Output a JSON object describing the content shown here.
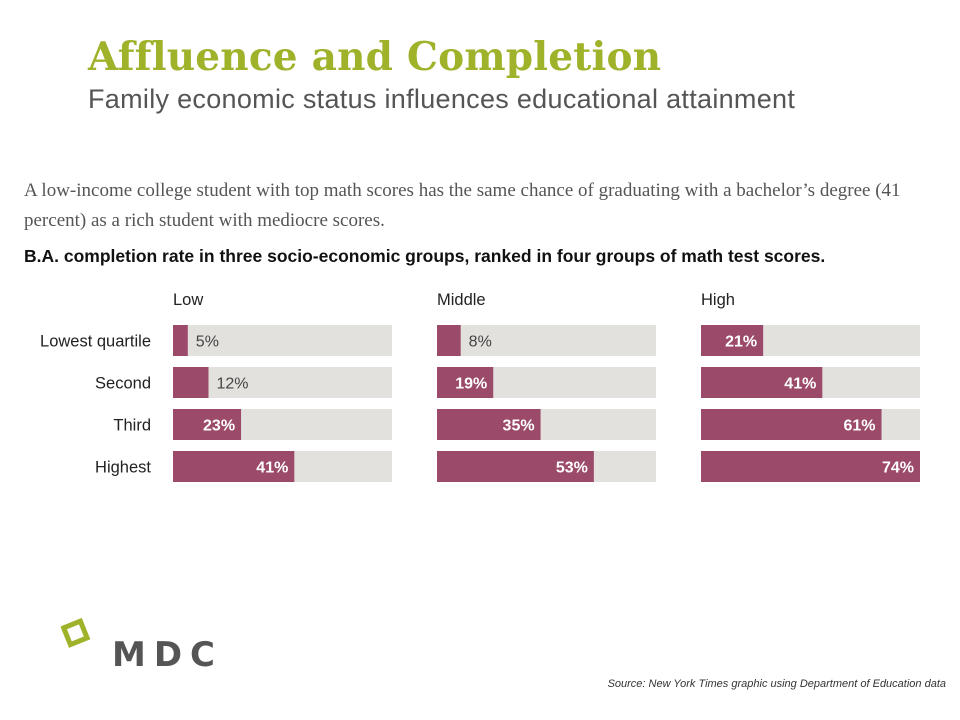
{
  "header": {
    "title": "Affluence and Completion",
    "subtitle": "Family economic status influences educational attainment"
  },
  "lede": "A low-income college student with top math scores has the same chance of graduating with a bachelor’s degree (41 percent) as a rich student with mediocre scores.",
  "chart_heading": "B.A. completion rate in three socio-economic groups, ranked in four groups of math test scores.",
  "chart_data": {
    "type": "bar",
    "orientation": "horizontal",
    "title": "B.A. completion rate in three socio-economic groups, ranked in four groups of math test scores.",
    "categories": [
      "Lowest quartile",
      "Second",
      "Third",
      "Highest"
    ],
    "series": [
      {
        "name": "Low",
        "values": [
          5,
          12,
          23,
          41
        ],
        "labels": [
          "5%",
          "12%",
          "23%",
          "41%"
        ]
      },
      {
        "name": "Middle",
        "values": [
          8,
          19,
          35,
          53
        ],
        "labels": [
          "8%",
          "19%",
          "35%",
          "53%"
        ]
      },
      {
        "name": "High",
        "values": [
          21,
          41,
          61,
          74
        ],
        "labels": [
          "21%",
          "41%",
          "61%",
          "74%"
        ]
      }
    ],
    "xlim": [
      0,
      74
    ],
    "bar_color": "#9c4a6a",
    "track_color": "#e3e1dd"
  },
  "source": "Source: New York Times graphic using Department of Education data",
  "logo": {
    "text": "MDC",
    "mark_color": "#9fb22a",
    "text_color": "#555555"
  }
}
